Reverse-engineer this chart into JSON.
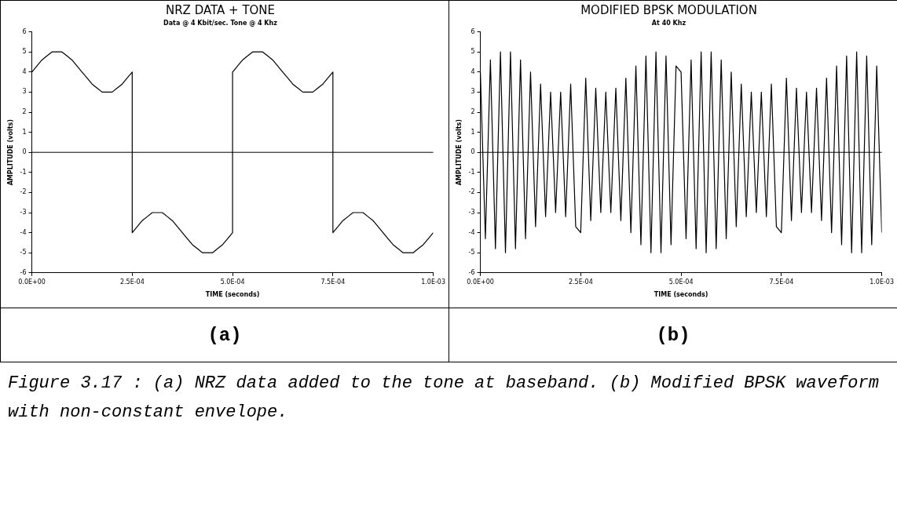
{
  "chart_data": [
    {
      "type": "line",
      "title": "NRZ DATA + TONE",
      "subtitle": "Data @ 4 Kbit/sec. Tone @ 4 Khz",
      "xlabel": "TIME (seconds)",
      "ylabel": "AMPLITUDE (volts)",
      "x": [
        0,
        1.25e-05,
        2.5e-05,
        3.75e-05,
        5e-05,
        6.25e-05,
        7.5e-05,
        8.75e-05,
        0.0001,
        0.0001125,
        0.000125,
        0.0001375,
        0.00015,
        0.0001625,
        0.000175,
        0.0001875,
        0.0002,
        0.0002125,
        0.000225,
        0.0002375,
        0.00025,
        0.00025,
        0.0002625,
        0.000275,
        0.0002875,
        0.0003,
        0.0003125,
        0.000325,
        0.0003375,
        0.00035,
        0.0003625,
        0.000375,
        0.0003875,
        0.0004,
        0.0004125,
        0.000425,
        0.0004375,
        0.00045,
        0.0004625,
        0.000475,
        0.0004875,
        0.0005,
        0.0005,
        0.0005125,
        0.000525,
        0.0005375,
        0.00055,
        0.0005625,
        0.000575,
        0.0005875,
        0.0006,
        0.0006125,
        0.000625,
        0.0006375,
        0.00065,
        0.0006625,
        0.000675,
        0.0006875,
        0.0007,
        0.0007125,
        0.000725,
        0.0007375,
        0.00075,
        0.00075,
        0.0007625,
        0.000775,
        0.0007875,
        0.0008,
        0.0008125,
        0.000825,
        0.0008375,
        0.00085,
        0.0008625,
        0.000875,
        0.0008875,
        0.0009,
        0.0009125,
        0.000925,
        0.0009375,
        0.00095,
        0.0009625,
        0.000975,
        0.0009875,
        0.001
      ],
      "series": [
        {
          "color": "#000000",
          "values": [
            4,
            4.3,
            4.6,
            4.8,
            5.0,
            5,
            5.0,
            4.8,
            4.6,
            4.3,
            4,
            3.7,
            3.4,
            3.2,
            3.0,
            3,
            3.0,
            3.2,
            3.4,
            3.7,
            4,
            -4,
            -3.7,
            -3.4,
            -3.2,
            -3.0,
            -3,
            -3.0,
            -3.2,
            -3.4,
            -3.7,
            -4,
            -4.3,
            -4.6,
            -4.8,
            -5.0,
            -5,
            -5.0,
            -4.8,
            -4.6,
            -4.3,
            -4,
            4,
            4.3,
            4.6,
            4.8,
            5.0,
            5,
            5.0,
            4.8,
            4.6,
            4.3,
            4,
            3.7,
            3.4,
            3.2,
            3.0,
            3,
            3.0,
            3.2,
            3.4,
            3.7,
            4,
            -4,
            -3.7,
            -3.4,
            -3.2,
            -3.0,
            -3,
            -3.0,
            -3.2,
            -3.4,
            -3.7,
            -4,
            -4.3,
            -4.6,
            -4.8,
            -5.0,
            -5,
            -5.0,
            -4.8,
            -4.6,
            -4.3,
            -4
          ]
        }
      ],
      "xlim": [
        0,
        0.001
      ],
      "xticks": [
        {
          "value": 0,
          "label": "0.0E+00"
        },
        {
          "value": 0.00025,
          "label": "2.5E-04"
        },
        {
          "value": 0.0005,
          "label": "5.0E-04"
        },
        {
          "value": 0.00075,
          "label": "7.5E-04"
        },
        {
          "value": 0.001,
          "label": "1.0E-03"
        }
      ],
      "ylim": [
        -6,
        6
      ],
      "yticks": [
        -6,
        -5,
        -4,
        -3,
        -2,
        -1,
        0,
        1,
        2,
        3,
        4,
        5,
        6
      ],
      "grid": false,
      "legend": false,
      "marker": "none",
      "line_style": "solid",
      "ref_lines": [
        {
          "axis": "y",
          "value": 0
        }
      ],
      "annotations": [
        "(a)"
      ]
    },
    {
      "type": "line",
      "title": "MODIFIED BPSK MODULATION",
      "subtitle": "At 40 Khz",
      "xlabel": "TIME (seconds)",
      "ylabel": "AMPLITUDE (volts)",
      "x": [
        0,
        1.25e-05,
        2.5e-05,
        3.75e-05,
        5e-05,
        6.25e-05,
        7.5e-05,
        8.75e-05,
        0.0001,
        0.0001125,
        0.000125,
        0.0001375,
        0.00015,
        0.0001625,
        0.000175,
        0.0001875,
        0.0002,
        0.0002125,
        0.000225,
        0.0002375,
        0.00025,
        0.0002625,
        0.000275,
        0.0002875,
        0.0003,
        0.0003125,
        0.000325,
        0.0003375,
        0.00035,
        0.0003625,
        0.000375,
        0.0003875,
        0.0004,
        0.0004125,
        0.000425,
        0.0004375,
        0.00045,
        0.0004625,
        0.000475,
        0.0004875,
        0.0005,
        0.0005125,
        0.000525,
        0.0005375,
        0.00055,
        0.0005625,
        0.000575,
        0.0005875,
        0.0006,
        0.0006125,
        0.000625,
        0.0006375,
        0.00065,
        0.0006625,
        0.000675,
        0.0006875,
        0.0007,
        0.0007125,
        0.000725,
        0.0007375,
        0.00075,
        0.0007625,
        0.000775,
        0.0007875,
        0.0008,
        0.0008125,
        0.000825,
        0.0008375,
        0.00085,
        0.0008625,
        0.000875,
        0.0008875,
        0.0009,
        0.0009125,
        0.000925,
        0.0009375,
        0.00095,
        0.0009625,
        0.000975,
        0.0009875,
        0.001
      ],
      "series": [
        {
          "color": "#000000",
          "values": [
            4,
            -4.3,
            4.6,
            -4.8,
            5.0,
            -5,
            5.0,
            -4.8,
            4.6,
            -4.3,
            4,
            -3.7,
            3.4,
            -3.2,
            3.0,
            -3,
            3.0,
            -3.2,
            3.4,
            -3.7,
            -4,
            3.7,
            -3.4,
            3.2,
            -3.0,
            3,
            -3.0,
            3.2,
            -3.4,
            3.7,
            -4,
            4.3,
            -4.6,
            4.8,
            -5.0,
            5,
            -5.0,
            4.8,
            -4.6,
            4.3,
            4,
            -4.3,
            4.6,
            -4.8,
            5.0,
            -5,
            5.0,
            -4.8,
            4.6,
            -4.3,
            4,
            -3.7,
            3.4,
            -3.2,
            3.0,
            -3,
            3.0,
            -3.2,
            3.4,
            -3.7,
            -4,
            3.7,
            -3.4,
            3.2,
            -3.0,
            3,
            -3.0,
            3.2,
            -3.4,
            3.7,
            -4,
            4.3,
            -4.6,
            4.8,
            -5.0,
            5,
            -5.0,
            4.8,
            -4.6,
            4.3,
            -4
          ]
        }
      ],
      "xlim": [
        0,
        0.001
      ],
      "xticks": [
        {
          "value": 0,
          "label": "0.0E+00"
        },
        {
          "value": 0.00025,
          "label": "2.5E-04"
        },
        {
          "value": 0.0005,
          "label": "5.0E-04"
        },
        {
          "value": 0.00075,
          "label": "7.5E-04"
        },
        {
          "value": 0.001,
          "label": "1.0E-03"
        }
      ],
      "ylim": [
        -6,
        6
      ],
      "yticks": [
        -6,
        -5,
        -4,
        -3,
        -2,
        -1,
        0,
        1,
        2,
        3,
        4,
        5,
        6
      ],
      "grid": false,
      "legend": false,
      "marker": "none",
      "line_style": "solid",
      "ref_lines": [
        {
          "axis": "y",
          "value": 0
        }
      ],
      "annotations": [
        "(b)",
        "Figure 3.17 : (a) NRZ data added to the tone at baseband. (b) Modified BPSK waveform with non-constant envelope."
      ]
    }
  ]
}
